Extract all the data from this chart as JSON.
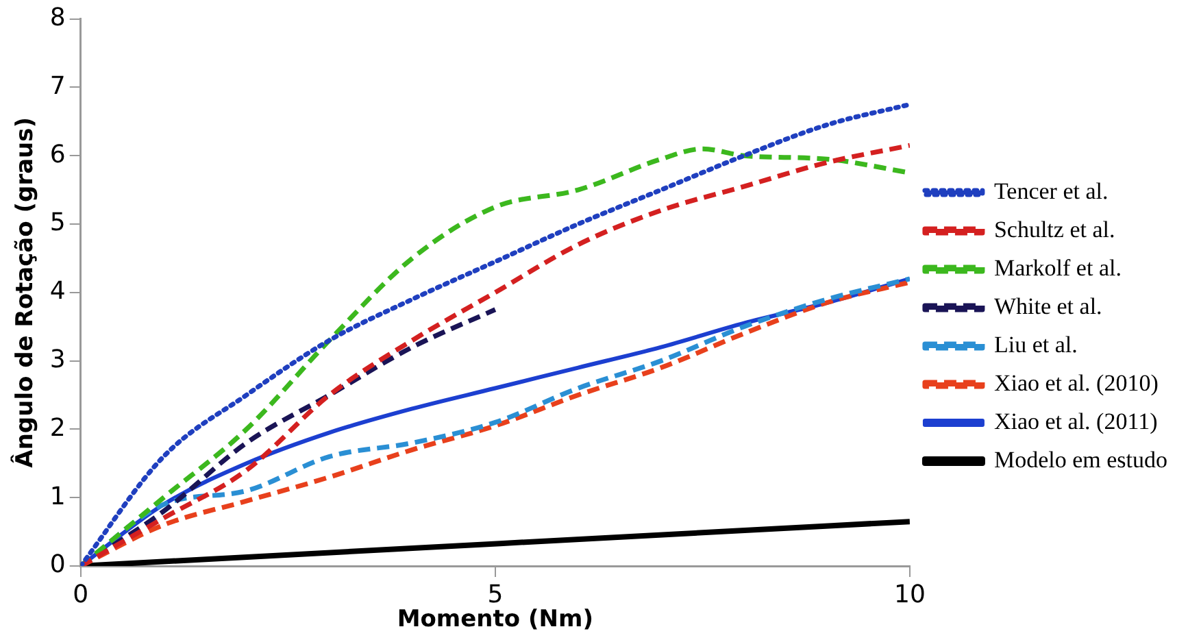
{
  "chart_data": {
    "type": "line",
    "xlabel": "Momento (Nm)",
    "ylabel": "Ângulo de Rotação (graus)",
    "xlim": [
      0,
      10
    ],
    "xticks": [
      0,
      5,
      10
    ],
    "ylim": [
      0,
      8
    ],
    "yticks": [
      0,
      1,
      2,
      3,
      4,
      5,
      6,
      7,
      8
    ],
    "grid": false,
    "legend": "right",
    "marker": "none",
    "series": [
      {
        "name": "Tencer et al.",
        "color": "#1f3fbf",
        "line_style": "dotted",
        "x": [
          0,
          1,
          2,
          3,
          4,
          5,
          6,
          7,
          8,
          9,
          10
        ],
        "values": [
          0,
          1.6,
          2.5,
          3.3,
          3.9,
          4.45,
          5.0,
          5.5,
          6.0,
          6.45,
          6.75
        ]
      },
      {
        "name": "Schultz et al.",
        "color": "#d42020",
        "line_style": "dashed",
        "x": [
          0,
          1,
          2,
          3,
          4,
          5,
          6,
          7,
          8,
          9,
          10
        ],
        "values": [
          0,
          0.7,
          1.4,
          2.5,
          3.3,
          4.0,
          4.7,
          5.2,
          5.55,
          5.9,
          6.15
        ]
      },
      {
        "name": "Markolf et al.",
        "color": "#3cb81e",
        "line_style": "dashed",
        "x": [
          0,
          1,
          2,
          3,
          4,
          5,
          6,
          7,
          7.5,
          8,
          9,
          10
        ],
        "values": [
          0,
          1.0,
          2.0,
          3.3,
          4.5,
          5.25,
          5.5,
          5.95,
          6.1,
          6.0,
          5.95,
          5.75
        ]
      },
      {
        "name": "White et al.",
        "color": "#1a1456",
        "line_style": "dashed",
        "x": [
          0,
          1,
          2,
          3,
          4,
          5
        ],
        "values": [
          0,
          0.8,
          1.8,
          2.5,
          3.2,
          3.75
        ]
      },
      {
        "name": "Liu et al.",
        "color": "#2a8fd4",
        "line_style": "dashed",
        "x": [
          0,
          1,
          2,
          3,
          4,
          5,
          6,
          7,
          8,
          9,
          10
        ],
        "values": [
          0,
          0.9,
          1.1,
          1.6,
          1.8,
          2.1,
          2.6,
          3.0,
          3.5,
          3.9,
          4.2
        ]
      },
      {
        "name": "Xiao et al. (2010)",
        "color": "#e8401c",
        "line_style": "dashed",
        "x": [
          0,
          1,
          2,
          3,
          4,
          5,
          6,
          7,
          8,
          9,
          10
        ],
        "values": [
          0,
          0.6,
          0.95,
          1.3,
          1.7,
          2.05,
          2.5,
          2.9,
          3.4,
          3.85,
          4.15
        ]
      },
      {
        "name": "Xiao et al. (2011)",
        "color": "#1c3fd0",
        "line_style": "solid",
        "x": [
          0,
          1,
          2,
          3,
          4,
          5,
          6,
          7,
          8,
          9,
          10
        ],
        "values": [
          0,
          0.9,
          1.5,
          1.95,
          2.3,
          2.6,
          2.9,
          3.2,
          3.55,
          3.85,
          4.2
        ]
      },
      {
        "name": "Modelo em estudo",
        "color": "#000000",
        "line_style": "solid",
        "x": [
          0,
          10
        ],
        "values": [
          0,
          0.65
        ]
      }
    ]
  }
}
